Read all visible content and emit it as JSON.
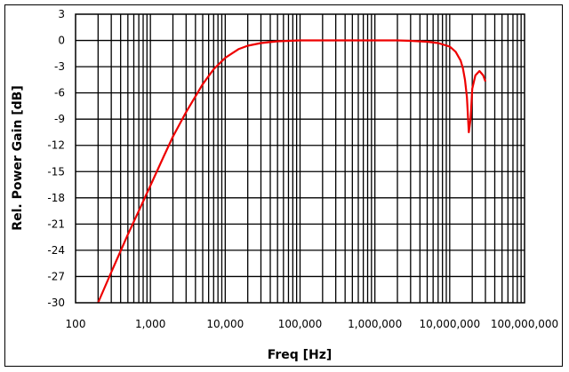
{
  "chart_data": {
    "type": "line",
    "title": "",
    "xlabel": "Freq [Hz]",
    "ylabel": "Rel. Power Gain [dB]",
    "xscale": "log",
    "xlim": [
      100,
      100000000
    ],
    "ylim": [
      -30,
      3
    ],
    "grid": true,
    "legend": null,
    "x_ticks": [
      "100",
      "1,000",
      "10,000",
      "100,000",
      "1,000,000",
      "10,000,000",
      "100,000,000"
    ],
    "y_ticks": [
      "3",
      "0",
      "-3",
      "-6",
      "-9",
      "-12",
      "-15",
      "-18",
      "-21",
      "-24",
      "-27",
      "-30"
    ],
    "series": [
      {
        "name": "Rel. Power Gain",
        "color": "#ee0000",
        "x": [
          200,
          300,
          500,
          700,
          1000,
          1500,
          2000,
          3000,
          5000,
          7000,
          10000,
          15000,
          20000,
          30000,
          50000,
          100000,
          300000,
          1000000,
          2000000,
          3000000,
          5000000,
          7000000,
          10000000,
          12000000,
          14000000,
          15000000,
          16000000,
          17000000,
          18000000,
          19000000,
          20000000,
          22000000,
          25000000,
          28000000,
          30000000
        ],
        "y": [
          -30,
          -26.5,
          -22.2,
          -19.5,
          -16.6,
          -13.3,
          -11.0,
          -8.2,
          -5.0,
          -3.3,
          -2.0,
          -1.0,
          -0.6,
          -0.3,
          -0.1,
          0,
          0,
          0,
          0,
          -0.05,
          -0.15,
          -0.3,
          -0.7,
          -1.3,
          -2.3,
          -3.2,
          -4.5,
          -6.5,
          -10.5,
          -9.0,
          -5.5,
          -4.0,
          -3.5,
          -4.0,
          -4.7
        ]
      }
    ]
  },
  "axes": {
    "xlabel": "Freq [Hz]",
    "ylabel": "Rel. Power Gain [dB]"
  }
}
